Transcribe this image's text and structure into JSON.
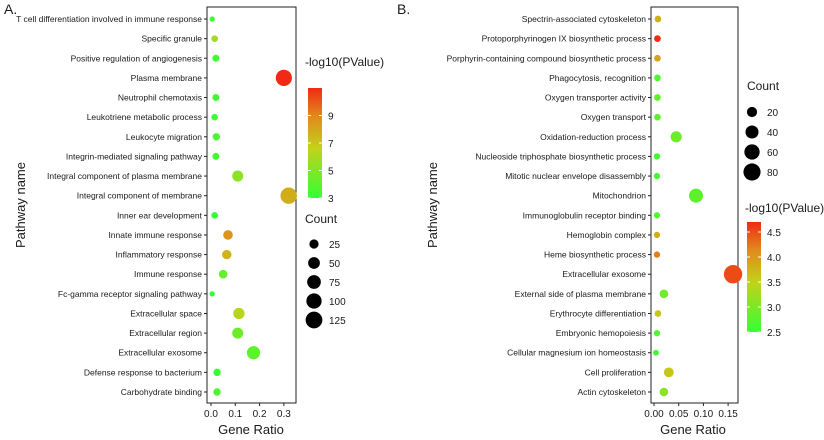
{
  "chart_data": [
    {
      "panel_label": "A.",
      "type": "scatter",
      "xlabel": "Gene Ratio",
      "ylabel": "Pathway name",
      "xlim": [
        0.0,
        0.35
      ],
      "x_ticks": [
        "0.0",
        "0.1",
        "0.2",
        "0.3"
      ],
      "x_tick_values": [
        0.0,
        0.1,
        0.2,
        0.3
      ],
      "color_legend": {
        "title": "-log10(PValue)",
        "range": [
          3,
          11
        ],
        "ticks": [
          "3",
          "5",
          "7",
          "9"
        ],
        "tick_values": [
          3,
          5,
          7,
          9
        ]
      },
      "size_legend": {
        "title": "Count",
        "range": [
          0,
          130
        ],
        "ticks": [
          "25",
          "50",
          "75",
          "100",
          "125"
        ],
        "tick_values": [
          25,
          50,
          75,
          100,
          125
        ]
      },
      "categories": [
        "T cell differentiation involved in immune response",
        "Specific granule",
        "Positive regulation of angiogenesis",
        "Plasma membrane",
        "Neutrophil chemotaxis",
        "Leukotriene metabolic process",
        "Leukocyte migration",
        "Integrin-mediated signaling pathway",
        "Integral component of plasma membrane",
        "Integral component of membrane",
        "Inner ear development",
        "Innate immune response",
        "Inflammatory response",
        "Immune response",
        "Fc-gamma receptor signaling pathway",
        "Extracellular space",
        "Extracellular region",
        "Extracellular exosome",
        "Defense response to bacterium",
        "Carbohydrate binding"
      ],
      "gene_ratio": [
        0.005,
        0.015,
        0.02,
        0.3,
        0.02,
        0.015,
        0.022,
        0.02,
        0.11,
        0.32,
        0.015,
        0.07,
        0.065,
        0.05,
        0.005,
        0.115,
        0.11,
        0.175,
        0.025,
        0.025
      ],
      "count": [
        3,
        8,
        10,
        115,
        10,
        8,
        12,
        10,
        42,
        120,
        8,
        28,
        26,
        20,
        3,
        45,
        42,
        68,
        12,
        12
      ],
      "neg_log10_pvalue": [
        3.2,
        5.8,
        3.4,
        11.0,
        3.4,
        3.2,
        3.6,
        3.4,
        5.3,
        7.8,
        3.0,
        8.6,
        7.6,
        4.2,
        3.0,
        6.3,
        4.5,
        4.0,
        3.2,
        3.6
      ]
    },
    {
      "panel_label": "B.",
      "type": "scatter",
      "xlabel": "Gene Ratio",
      "ylabel": "Pathway name",
      "xlim": [
        0.0,
        0.17
      ],
      "x_ticks": [
        "0.00",
        "0.05",
        "0.10",
        "0.15"
      ],
      "x_tick_values": [
        0.0,
        0.05,
        0.1,
        0.15
      ],
      "color_legend": {
        "title": "-log10(PValue)",
        "range": [
          2.5,
          4.7
        ],
        "ticks": [
          "2.5",
          "3.0",
          "3.5",
          "4.0",
          "4.5"
        ],
        "tick_values": [
          2.5,
          3.0,
          3.5,
          4.0,
          4.5
        ]
      },
      "size_legend": {
        "title": "Count",
        "range": [
          0,
          90
        ],
        "ticks": [
          "20",
          "40",
          "60",
          "80"
        ],
        "tick_values": [
          20,
          40,
          60,
          80
        ]
      },
      "categories": [
        "Spectrin-associated cytoskeleton",
        "Protoporphyrinogen IX biosynthetic process",
        "Porphyrin-containing compound biosynthetic process",
        "Phagocytosis, recognition",
        "Oxygen transporter activity",
        "Oxygen transport",
        "Oxidation-reduction process",
        "Nucleoside triphosphate biosynthetic process",
        "Mitotic nuclear envelope disassembly",
        "Mitochondrion",
        "Immunoglobulin receptor binding",
        "Hemoglobin complex",
        "Heme biosynthetic process",
        "Extracellular exosome",
        "External side of plasma membrane",
        "Erythrocyte differentiation",
        "Embryonic hemopoiesis",
        "Cellular magnesium ion homeostasis",
        "Cell proliferation",
        "Actin cytoskeleton"
      ],
      "gene_ratio": [
        0.008,
        0.007,
        0.007,
        0.007,
        0.007,
        0.007,
        0.045,
        0.006,
        0.006,
        0.085,
        0.006,
        0.006,
        0.006,
        0.16,
        0.02,
        0.008,
        0.006,
        0.004,
        0.03,
        0.02
      ],
      "count": [
        5,
        5,
        5,
        5,
        5,
        5,
        26,
        4,
        4,
        48,
        4,
        4,
        4,
        95,
        12,
        5,
        4,
        3,
        18,
        12
      ],
      "neg_log10_pvalue": [
        3.8,
        4.7,
        3.9,
        2.7,
        2.8,
        2.8,
        2.9,
        2.6,
        2.6,
        2.8,
        2.7,
        3.8,
        4.2,
        4.5,
        2.9,
        3.6,
        2.7,
        2.6,
        3.6,
        3.1
      ]
    }
  ]
}
